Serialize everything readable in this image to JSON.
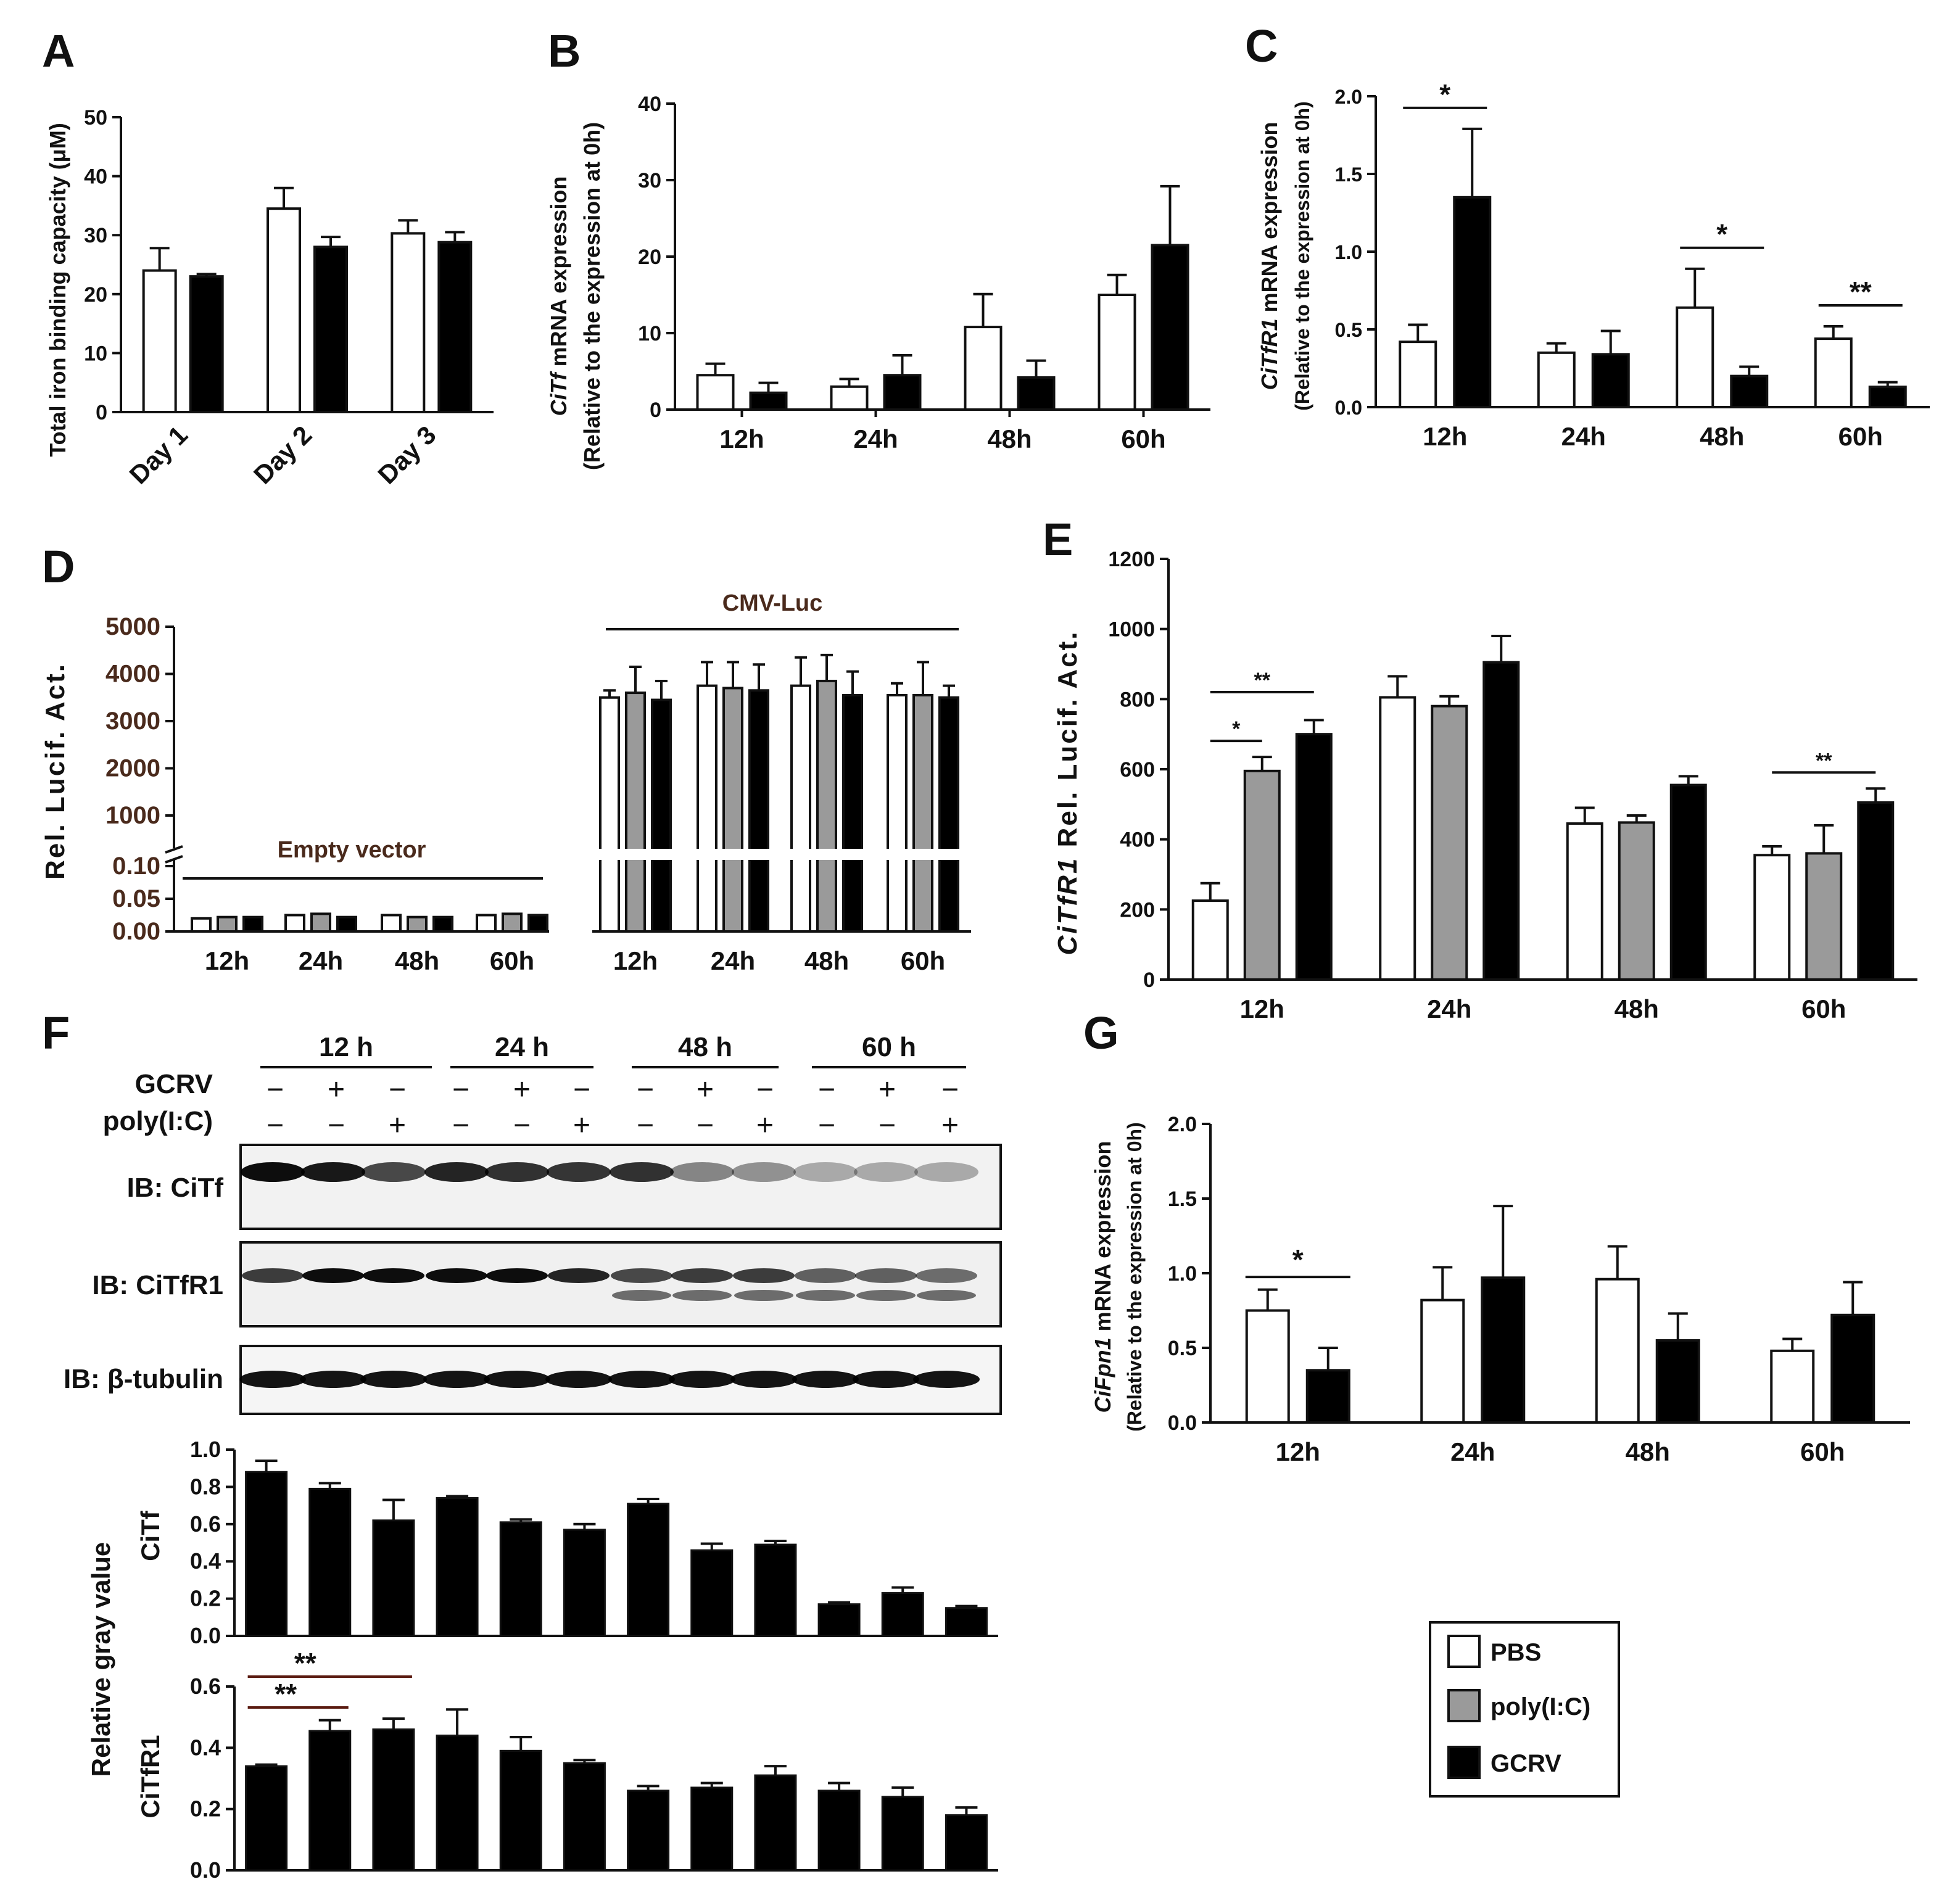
{
  "colors": {
    "pbs": "#ffffff",
    "poly": "#9a9a9a",
    "gcrv": "#000000",
    "axis": "#111111",
    "label_brown": "#4a2a1c"
  },
  "legend": {
    "items": [
      {
        "label": "PBS",
        "color": "#ffffff"
      },
      {
        "label": "poly(I:C)",
        "color": "#9a9a9a"
      },
      {
        "label": "GCRV",
        "color": "#000000"
      }
    ]
  },
  "chart_data": [
    {
      "panel": "A",
      "type": "bar",
      "ylabel": "Total iron binding capacity  (μM)",
      "ylim": [
        0,
        50
      ],
      "yticks": [
        "0",
        "10",
        "20",
        "30",
        "40",
        "50"
      ],
      "categories": [
        "Day 1",
        "Day 2",
        "Day 3"
      ],
      "series": [
        {
          "name": "PBS",
          "values": [
            24,
            34.5,
            30.3
          ],
          "errors": [
            3.8,
            3.5,
            2.2
          ]
        },
        {
          "name": "GCRV",
          "values": [
            23,
            28,
            28.8
          ],
          "errors": [
            0.4,
            1.7,
            1.7
          ]
        }
      ],
      "significance": []
    },
    {
      "panel": "B",
      "type": "bar",
      "ylabel": "CiTf mRNA expression",
      "ylabel2": "(Relative to the expression at 0h)",
      "ylim": [
        0,
        40
      ],
      "yticks": [
        "0",
        "10",
        "20",
        "30",
        "40"
      ],
      "categories": [
        "12h",
        "24h",
        "48h",
        "60h"
      ],
      "series": [
        {
          "name": "PBS",
          "values": [
            4.5,
            3,
            10.8,
            15
          ],
          "errors": [
            1.5,
            1,
            4.3,
            2.6
          ]
        },
        {
          "name": "GCRV",
          "values": [
            2.2,
            4.5,
            4.2,
            21.5
          ],
          "errors": [
            1.3,
            2.6,
            2.2,
            7.7
          ]
        }
      ],
      "significance": []
    },
    {
      "panel": "C",
      "type": "bar",
      "ylabel": "CiTfR1 mRNA expression",
      "ylabel2": "(Relative to the expression at 0h)",
      "ylim": [
        0,
        2
      ],
      "yticks": [
        "0.0",
        "0.5",
        "1.0",
        "1.5",
        "2.0"
      ],
      "categories": [
        "12h",
        "24h",
        "48h",
        "60h"
      ],
      "series": [
        {
          "name": "PBS",
          "values": [
            0.42,
            0.35,
            0.64,
            0.44
          ],
          "errors": [
            0.11,
            0.06,
            0.25,
            0.08
          ]
        },
        {
          "name": "GCRV",
          "values": [
            1.35,
            0.34,
            0.2,
            0.13
          ],
          "errors": [
            0.44,
            0.15,
            0.06,
            0.03
          ]
        }
      ],
      "significance": [
        {
          "group": 0,
          "label": "*"
        },
        {
          "group": 2,
          "label": "*"
        },
        {
          "group": 3,
          "label": "**"
        }
      ]
    },
    {
      "panel": "D",
      "type": "bar",
      "ylabel": "Rel. Lucif. Act.",
      "axis_break": true,
      "yticks_low": [
        "0.00",
        "0.05",
        "0.10"
      ],
      "yticks_high": [
        "1000",
        "2000",
        "3000",
        "4000",
        "5000"
      ],
      "group_titles": [
        "Empty vector",
        "CMV-Luc"
      ],
      "categories": [
        "12h",
        "24h",
        "48h",
        "60h",
        "12h",
        "24h",
        "48h",
        "60h"
      ],
      "series": [
        {
          "name": "PBS",
          "values": [
            0.02,
            0.025,
            0.025,
            0.025,
            3500,
            3750,
            3750,
            3550
          ],
          "errors": [
            0.002,
            0.003,
            0.003,
            0.003,
            150,
            500,
            600,
            250
          ]
        },
        {
          "name": "poly(I:C)",
          "values": [
            0.022,
            0.027,
            0.022,
            0.027,
            3600,
            3700,
            3850,
            3550
          ],
          "errors": [
            0.002,
            0.003,
            0.002,
            0.003,
            550,
            550,
            550,
            700
          ]
        },
        {
          "name": "GCRV",
          "values": [
            0.022,
            0.022,
            0.022,
            0.025,
            3450,
            3650,
            3550,
            3500
          ],
          "errors": [
            0.002,
            0.002,
            0.002,
            0.003,
            400,
            550,
            500,
            250
          ]
        }
      ],
      "significance": []
    },
    {
      "panel": "E",
      "type": "bar",
      "ylabel": "CiTfR1 Rel. Lucif. Act.",
      "ylim": [
        0,
        1200
      ],
      "yticks": [
        "0",
        "200",
        "400",
        "600",
        "800",
        "1000",
        "1200"
      ],
      "categories": [
        "12h",
        "24h",
        "48h",
        "60h"
      ],
      "series": [
        {
          "name": "PBS",
          "values": [
            225,
            805,
            445,
            355
          ],
          "errors": [
            50,
            60,
            45,
            25
          ]
        },
        {
          "name": "poly(I:C)",
          "values": [
            595,
            780,
            448,
            360
          ],
          "errors": [
            40,
            28,
            20,
            80
          ]
        },
        {
          "name": "GCRV",
          "values": [
            700,
            905,
            555,
            505
          ],
          "errors": [
            40,
            75,
            25,
            40
          ]
        }
      ],
      "significance": [
        {
          "group": 0,
          "from": 0,
          "to": 1,
          "label": "*"
        },
        {
          "group": 0,
          "from": 0,
          "to": 2,
          "label": "**"
        },
        {
          "group": 3,
          "from": 0,
          "to": 2,
          "label": "**"
        }
      ]
    },
    {
      "panel": "G",
      "type": "bar",
      "ylabel": "CiFpn1 mRNA expression",
      "ylabel2": "(Relative to the expression at 0h)",
      "ylim": [
        0,
        2
      ],
      "yticks": [
        "0.0",
        "0.5",
        "1.0",
        "1.5",
        "2.0"
      ],
      "categories": [
        "12h",
        "24h",
        "48h",
        "60h"
      ],
      "series": [
        {
          "name": "PBS",
          "values": [
            0.75,
            0.82,
            0.96,
            0.48
          ],
          "errors": [
            0.14,
            0.22,
            0.22,
            0.08
          ]
        },
        {
          "name": "GCRV",
          "values": [
            0.35,
            0.97,
            0.55,
            0.72
          ],
          "errors": [
            0.15,
            0.48,
            0.18,
            0.22
          ]
        }
      ],
      "significance": [
        {
          "group": 0,
          "label": "*"
        }
      ]
    },
    {
      "panel": "F-CiTf",
      "type": "bar",
      "ylabel": "CiTf",
      "shared_ylabel": "Relative gray value",
      "ylim": [
        0,
        1
      ],
      "yticks": [
        "0.0",
        "0.2",
        "0.4",
        "0.6",
        "0.8",
        "1.0"
      ],
      "lanes": 12,
      "values": [
        0.88,
        0.79,
        0.62,
        0.74,
        0.61,
        0.57,
        0.71,
        0.46,
        0.49,
        0.17,
        0.23,
        0.15
      ],
      "errors": [
        0.06,
        0.03,
        0.11,
        0.01,
        0.015,
        0.03,
        0.025,
        0.035,
        0.02,
        0.01,
        0.03,
        0.01
      ],
      "significance": []
    },
    {
      "panel": "F-CiTfR1",
      "type": "bar",
      "ylabel": "CiTfR1",
      "ylim": [
        0,
        0.6
      ],
      "yticks": [
        "0.0",
        "0.2",
        "0.4",
        "0.6"
      ],
      "lanes": 12,
      "values": [
        0.34,
        0.455,
        0.46,
        0.44,
        0.39,
        0.35,
        0.26,
        0.27,
        0.31,
        0.26,
        0.24,
        0.18
      ],
      "errors": [
        0.005,
        0.035,
        0.035,
        0.085,
        0.045,
        0.01,
        0.015,
        0.015,
        0.03,
        0.025,
        0.03,
        0.025
      ],
      "significance": [
        {
          "from": 0,
          "to": 1,
          "label": "**"
        },
        {
          "from": 0,
          "to": 2,
          "label": "**"
        }
      ]
    }
  ],
  "western": {
    "timepoints": [
      "12 h",
      "24 h",
      "48 h",
      "60 h"
    ],
    "row_labels": [
      "GCRV",
      "poly(I:C)"
    ],
    "gcrv_signs": [
      "−",
      "+",
      "−",
      "−",
      "+",
      "−",
      "−",
      "+",
      "−",
      "−",
      "+",
      "−"
    ],
    "poly_signs": [
      "−",
      "−",
      "+",
      "−",
      "−",
      "+",
      "−",
      "−",
      "+",
      "−",
      "−",
      "+"
    ],
    "blots": [
      {
        "label": "IB: CiTf"
      },
      {
        "label": "IB: CiTfR1"
      },
      {
        "label": "IB: β-tubulin"
      }
    ]
  }
}
